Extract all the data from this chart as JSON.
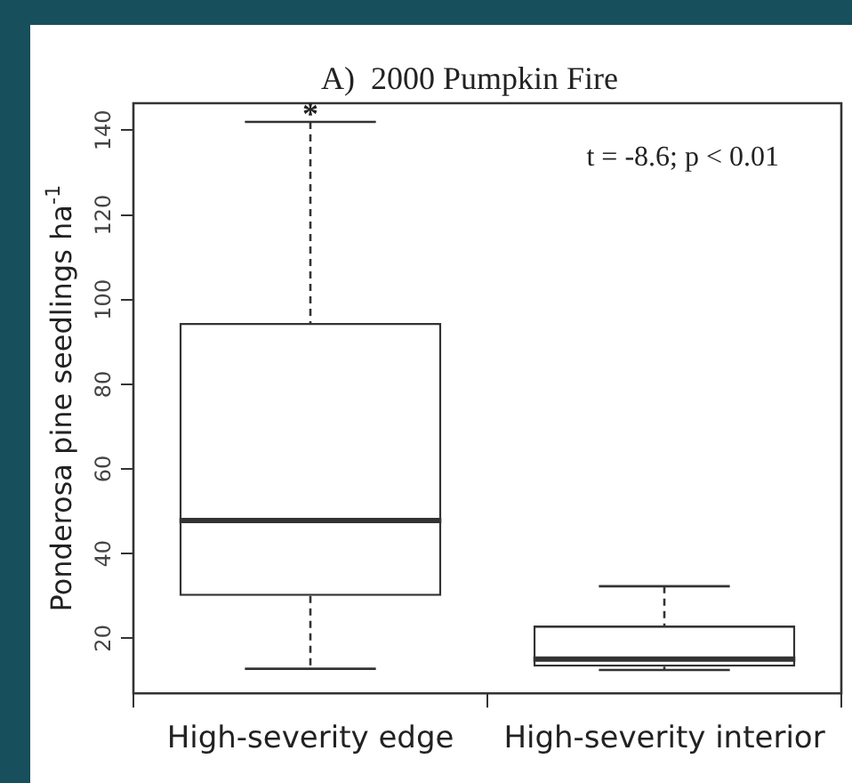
{
  "chart_data": {
    "type": "box",
    "title": "A)  2000 Pumpkin Fire",
    "ylabel": "Ponderosa pine seedlings ha$^{-1}$",
    "categories": [
      "High-severity edge",
      "High-severity interior"
    ],
    "boxes": [
      {
        "low": 12.8,
        "q1": 30,
        "median": 47.8,
        "q3": 94.5,
        "high": 142
      },
      {
        "low": 12.5,
        "q1": 13.3,
        "median": 15.1,
        "q3": 23,
        "high": 32.3
      }
    ],
    "ylim": [
      7,
      146.4
    ],
    "yticks": [
      20,
      40,
      60,
      80,
      100,
      120,
      140
    ],
    "grid": false,
    "annotations": [
      "*",
      "t = -8.6; p < 0.01"
    ]
  }
}
